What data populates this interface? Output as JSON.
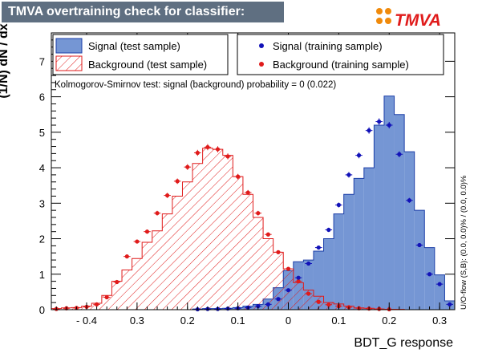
{
  "header": {
    "title": "TMVA overtraining check for classifier: BDT_G",
    "logo_text": "TMVA",
    "accent_color": "#f08a0b"
  },
  "chart_data": {
    "type": "bar",
    "xlabel": "BDT_G response",
    "ylabel": "(1/N) dN / dx",
    "xlim": [
      -0.47,
      0.33
    ],
    "ylim": [
      0,
      7.8
    ],
    "xticks": [
      "- 0.4",
      "0.3",
      "0.2",
      "0.1",
      "0",
      "0.1",
      "0.2",
      "0.3"
    ],
    "xtick_values": [
      -0.4,
      -0.3,
      -0.2,
      -0.1,
      0,
      0.1,
      0.2,
      0.3
    ],
    "yticks": [
      "0",
      "1",
      "2",
      "3",
      "4",
      "5",
      "6",
      "7"
    ],
    "ytick_values": [
      0,
      1,
      2,
      3,
      4,
      5,
      6,
      7
    ],
    "bin_edges": [
      -0.47,
      -0.45,
      -0.43,
      -0.41,
      -0.39,
      -0.37,
      -0.35,
      -0.33,
      -0.31,
      -0.29,
      -0.27,
      -0.25,
      -0.23,
      -0.21,
      -0.19,
      -0.17,
      -0.15,
      -0.13,
      -0.11,
      -0.09,
      -0.07,
      -0.05,
      -0.03,
      -0.01,
      0.01,
      0.03,
      0.05,
      0.07,
      0.09,
      0.11,
      0.13,
      0.15,
      0.17,
      0.19,
      0.21,
      0.23,
      0.25,
      0.27,
      0.29,
      0.31,
      0.33
    ],
    "series": [
      {
        "name": "Signal (test sample)",
        "style": "filled",
        "color": "#7596d4",
        "edge": "#1c3fa8",
        "values": [
          0,
          0,
          0,
          0,
          0,
          0,
          0,
          0,
          0,
          0,
          0,
          0,
          0,
          0,
          0.02,
          0.03,
          0.03,
          0.04,
          0.06,
          0.1,
          0.15,
          0.3,
          0.62,
          1.1,
          1.35,
          1.4,
          1.65,
          2.0,
          2.7,
          3.25,
          3.7,
          4.0,
          5.2,
          6.02,
          5.5,
          4.45,
          2.8,
          1.75,
          0.98,
          0.25
        ]
      },
      {
        "name": "Background (test sample)",
        "style": "hatched",
        "color": "#e01b1b",
        "values": [
          0.03,
          0.05,
          0.06,
          0.1,
          0.18,
          0.4,
          0.8,
          1.12,
          1.44,
          1.9,
          2.22,
          2.7,
          3.2,
          3.6,
          4.12,
          4.55,
          4.52,
          4.35,
          3.75,
          3.25,
          2.6,
          2.0,
          1.62,
          1.15,
          0.76,
          0.55,
          0.38,
          0.2,
          0.16,
          0.1,
          0.05,
          0.04,
          0.02,
          0.01,
          0.01,
          0,
          0,
          0,
          0,
          0
        ]
      },
      {
        "name": "Signal (training sample)",
        "style": "markers",
        "color": "#1212b8",
        "values": [
          0,
          0,
          0,
          0,
          0,
          0,
          0,
          0,
          0,
          0,
          0,
          0,
          0,
          0,
          0.01,
          0.02,
          0.02,
          0.03,
          0.04,
          0.06,
          0.1,
          0.15,
          0.3,
          0.55,
          0.9,
          1.3,
          1.75,
          2.25,
          2.95,
          3.8,
          4.35,
          5.05,
          5.3,
          5.2,
          4.38,
          3.08,
          1.82,
          1.0,
          0.72,
          0.15
        ]
      },
      {
        "name": "Background (training sample)",
        "style": "markers",
        "color": "#e01b1b",
        "values": [
          0.02,
          0.04,
          0.05,
          0.08,
          0.15,
          0.35,
          0.78,
          1.5,
          1.92,
          2.2,
          2.72,
          3.22,
          3.62,
          4.02,
          4.42,
          4.58,
          4.52,
          4.32,
          3.75,
          3.3,
          2.72,
          2.12,
          1.62,
          1.15,
          0.8,
          0.45,
          0.22,
          0.14,
          0.1,
          0.07,
          0.04,
          0.03,
          0.02,
          0.01,
          0,
          0,
          0,
          0,
          0,
          0
        ]
      }
    ],
    "ks_text": "Kolmogorov-Smirnov test: signal (background) probability =     0 (0.022)",
    "side_note": "U/O-flow (S,B): (0.0, 0.0)% / (0.0, 0.0)%",
    "legend_position": "top"
  }
}
